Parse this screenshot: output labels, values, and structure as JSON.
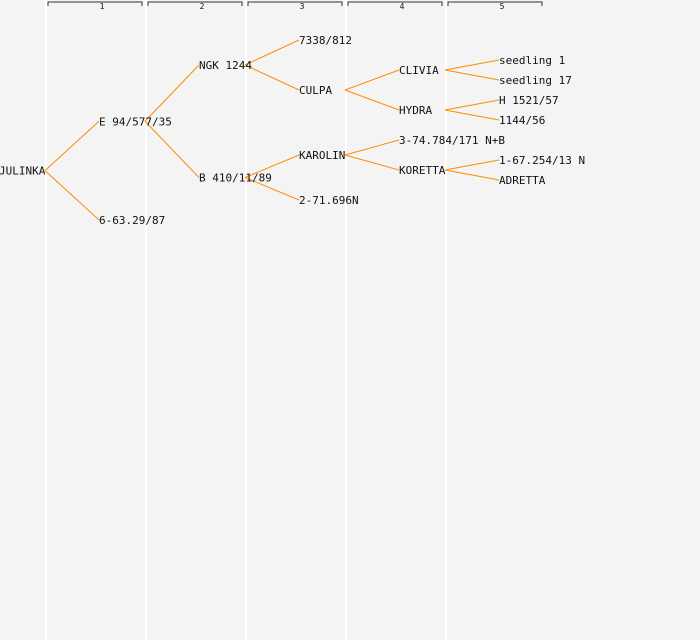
{
  "generations": [
    "1",
    "2",
    "3",
    "4",
    "5"
  ],
  "tree": {
    "label": "JULINKA",
    "children": [
      {
        "label": "E 94/577/35",
        "children": [
          {
            "label": "NGK 1244",
            "children": [
              {
                "label": "7338/812"
              },
              {
                "label": "CULPA",
                "children": [
                  {
                    "label": "CLIVIA",
                    "children": [
                      {
                        "label": "seedling 1"
                      },
                      {
                        "label": "seedling 17"
                      }
                    ]
                  },
                  {
                    "label": "HYDRA",
                    "children": [
                      {
                        "label": "H 1521/57"
                      },
                      {
                        "label": "1144/56"
                      }
                    ]
                  }
                ]
              }
            ]
          },
          {
            "label": "B 410/11/89",
            "children": [
              {
                "label": "KAROLIN",
                "children": [
                  {
                    "label": "3-74.784/171 N+B"
                  },
                  {
                    "label": "KORETTA",
                    "children": [
                      {
                        "label": "1-67.254/13 N"
                      },
                      {
                        "label": "ADRETTA"
                      }
                    ]
                  }
                ]
              },
              {
                "label": "2-71.696N"
              }
            ]
          }
        ]
      },
      {
        "label": "6-63.29/87"
      }
    ]
  },
  "colors": {
    "edge": "#ff8c00",
    "background": "#f4f4f4",
    "column_divider": "#ffffff",
    "text": "#111111"
  }
}
